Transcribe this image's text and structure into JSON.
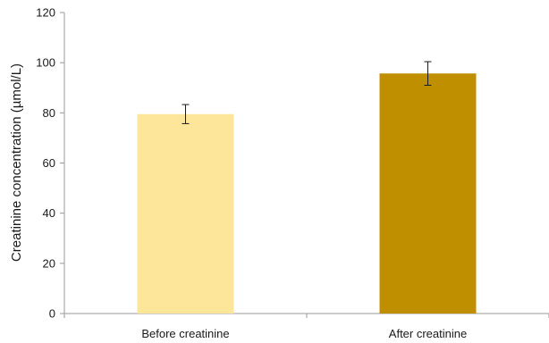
{
  "chart_data": {
    "type": "bar",
    "title": "",
    "xlabel": "",
    "ylabel": "Creatinine concentration (µmol/L)",
    "ylim": [
      0,
      120
    ],
    "yticks": [
      0,
      20,
      40,
      60,
      80,
      100,
      120
    ],
    "categories": [
      "Before creatinine",
      "After creatinine"
    ],
    "values": [
      79.5,
      95.7
    ],
    "error_bars": [
      3.8,
      4.7
    ],
    "colors": [
      "#fde59a",
      "#bf8f00"
    ],
    "error_bar_color": "#1a1a1a",
    "axis_color": "#9a9a9a",
    "grid": false,
    "legend": "none"
  }
}
